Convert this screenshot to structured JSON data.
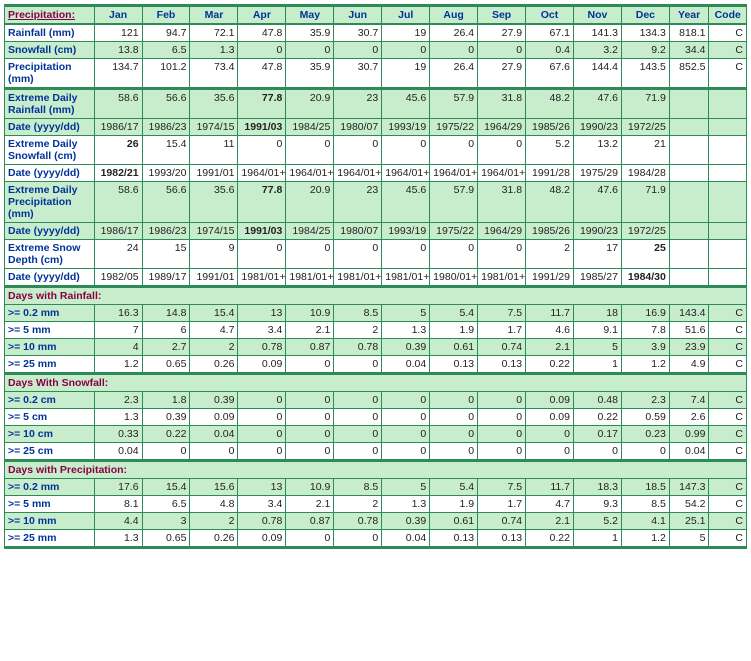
{
  "header": {
    "first": "Precipitation:",
    "months": [
      "Jan",
      "Feb",
      "Mar",
      "Apr",
      "May",
      "Jun",
      "Jul",
      "Aug",
      "Sep",
      "Oct",
      "Nov",
      "Dec"
    ],
    "year": "Year",
    "code": "Code"
  },
  "rows_main": [
    {
      "label": "Rainfall (mm)",
      "cls": "w",
      "vals": [
        "121",
        "94.7",
        "72.1",
        "47.8",
        "35.9",
        "30.7",
        "19",
        "26.4",
        "27.9",
        "67.1",
        "141.3",
        "134.3",
        "818.1",
        "C"
      ],
      "bold": []
    },
    {
      "label": "Snowfall (cm)",
      "cls": "g",
      "vals": [
        "13.8",
        "6.5",
        "1.3",
        "0",
        "0",
        "0",
        "0",
        "0",
        "0",
        "0.4",
        "3.2",
        "9.2",
        "34.4",
        "C"
      ],
      "bold": []
    },
    {
      "label": "Precipitation (mm)",
      "cls": "w",
      "vals": [
        "134.7",
        "101.2",
        "73.4",
        "47.8",
        "35.9",
        "30.7",
        "19",
        "26.4",
        "27.9",
        "67.6",
        "144.4",
        "143.5",
        "852.5",
        "C"
      ],
      "bold": [],
      "bb": true
    },
    {
      "label": "Extreme Daily Rainfall (mm)",
      "cls": "g",
      "vals": [
        "58.6",
        "56.6",
        "35.6",
        "77.8",
        "20.9",
        "23",
        "45.6",
        "57.9",
        "31.8",
        "48.2",
        "47.6",
        "71.9",
        "",
        ""
      ],
      "bold": [
        3
      ]
    },
    {
      "label": "Date (yyyy/dd)",
      "cls": "g",
      "vals": [
        "1986/17",
        "1986/23",
        "1974/15",
        "1991/03",
        "1984/25",
        "1980/07",
        "1993/19",
        "1975/22",
        "1964/29",
        "1985/26",
        "1990/23",
        "1972/25",
        "",
        ""
      ],
      "bold": [
        3
      ]
    },
    {
      "label": "Extreme Daily Snowfall (cm)",
      "cls": "w",
      "vals": [
        "26",
        "15.4",
        "11",
        "0",
        "0",
        "0",
        "0",
        "0",
        "0",
        "5.2",
        "13.2",
        "21",
        "",
        ""
      ],
      "bold": [
        0
      ]
    },
    {
      "label": "Date (yyyy/dd)",
      "cls": "w",
      "vals": [
        "1982/21",
        "1993/20",
        "1991/01",
        "1964/01+",
        "1964/01+",
        "1964/01+",
        "1964/01+",
        "1964/01+",
        "1964/01+",
        "1991/28",
        "1975/29",
        "1984/28",
        "",
        ""
      ],
      "bold": [
        0
      ]
    },
    {
      "label": "Extreme Daily Precipitation (mm)",
      "cls": "g",
      "vals": [
        "58.6",
        "56.6",
        "35.6",
        "77.8",
        "20.9",
        "23",
        "45.6",
        "57.9",
        "31.8",
        "48.2",
        "47.6",
        "71.9",
        "",
        ""
      ],
      "bold": [
        3
      ]
    },
    {
      "label": "Date (yyyy/dd)",
      "cls": "g",
      "vals": [
        "1986/17",
        "1986/23",
        "1974/15",
        "1991/03",
        "1984/25",
        "1980/07",
        "1993/19",
        "1975/22",
        "1964/29",
        "1985/26",
        "1990/23",
        "1972/25",
        "",
        ""
      ],
      "bold": [
        3
      ]
    },
    {
      "label": "Extreme Snow Depth (cm)",
      "cls": "w",
      "vals": [
        "24",
        "15",
        "9",
        "0",
        "0",
        "0",
        "0",
        "0",
        "0",
        "2",
        "17",
        "25",
        "",
        ""
      ],
      "bold": [
        11
      ]
    },
    {
      "label": "Date (yyyy/dd)",
      "cls": "w",
      "vals": [
        "1982/05",
        "1989/17",
        "1991/01",
        "1981/01+",
        "1981/01+",
        "1981/01+",
        "1981/01+",
        "1980/01+",
        "1981/01+",
        "1991/29",
        "1985/27",
        "1984/30",
        "",
        ""
      ],
      "bold": [
        11
      ]
    }
  ],
  "sections": [
    {
      "title": "Days with Rainfall:",
      "rows": [
        {
          "label": ">= 0.2 mm",
          "cls": "g",
          "vals": [
            "16.3",
            "14.8",
            "15.4",
            "13",
            "10.9",
            "8.5",
            "5",
            "5.4",
            "7.5",
            "11.7",
            "18",
            "16.9",
            "143.4",
            "C"
          ]
        },
        {
          "label": ">= 5 mm",
          "cls": "w",
          "vals": [
            "7",
            "6",
            "4.7",
            "3.4",
            "2.1",
            "2",
            "1.3",
            "1.9",
            "1.7",
            "4.6",
            "9.1",
            "7.8",
            "51.6",
            "C"
          ]
        },
        {
          "label": ">= 10 mm",
          "cls": "g",
          "vals": [
            "4",
            "2.7",
            "2",
            "0.78",
            "0.87",
            "0.78",
            "0.39",
            "0.61",
            "0.74",
            "2.1",
            "5",
            "3.9",
            "23.9",
            "C"
          ]
        },
        {
          "label": ">= 25 mm",
          "cls": "w",
          "vals": [
            "1.2",
            "0.65",
            "0.26",
            "0.09",
            "0",
            "0",
            "0.04",
            "0.13",
            "0.13",
            "0.22",
            "1",
            "1.2",
            "4.9",
            "C"
          ]
        }
      ]
    },
    {
      "title": "Days With Snowfall:",
      "rows": [
        {
          "label": ">= 0.2 cm",
          "cls": "g",
          "vals": [
            "2.3",
            "1.8",
            "0.39",
            "0",
            "0",
            "0",
            "0",
            "0",
            "0",
            "0.09",
            "0.48",
            "2.3",
            "7.4",
            "C"
          ]
        },
        {
          "label": ">= 5 cm",
          "cls": "w",
          "vals": [
            "1.3",
            "0.39",
            "0.09",
            "0",
            "0",
            "0",
            "0",
            "0",
            "0",
            "0.09",
            "0.22",
            "0.59",
            "2.6",
            "C"
          ]
        },
        {
          "label": ">= 10 cm",
          "cls": "g",
          "vals": [
            "0.33",
            "0.22",
            "0.04",
            "0",
            "0",
            "0",
            "0",
            "0",
            "0",
            "0",
            "0.17",
            "0.23",
            "0.99",
            "C"
          ]
        },
        {
          "label": ">= 25 cm",
          "cls": "w",
          "vals": [
            "0.04",
            "0",
            "0",
            "0",
            "0",
            "0",
            "0",
            "0",
            "0",
            "0",
            "0",
            "0",
            "0.04",
            "C"
          ]
        }
      ]
    },
    {
      "title": "Days with Precipitation:",
      "rows": [
        {
          "label": ">= 0.2 mm",
          "cls": "g",
          "vals": [
            "17.6",
            "15.4",
            "15.6",
            "13",
            "10.9",
            "8.5",
            "5",
            "5.4",
            "7.5",
            "11.7",
            "18.3",
            "18.5",
            "147.3",
            "C"
          ]
        },
        {
          "label": ">= 5 mm",
          "cls": "w",
          "vals": [
            "8.1",
            "6.5",
            "4.8",
            "3.4",
            "2.1",
            "2",
            "1.3",
            "1.9",
            "1.7",
            "4.7",
            "9.3",
            "8.5",
            "54.2",
            "C"
          ]
        },
        {
          "label": ">= 10 mm",
          "cls": "g",
          "vals": [
            "4.4",
            "3",
            "2",
            "0.78",
            "0.87",
            "0.78",
            "0.39",
            "0.61",
            "0.74",
            "2.1",
            "5.2",
            "4.1",
            "25.1",
            "C"
          ]
        },
        {
          "label": ">= 25 mm",
          "cls": "w",
          "vals": [
            "1.3",
            "0.65",
            "0.26",
            "0.09",
            "0",
            "0",
            "0.04",
            "0.13",
            "0.13",
            "0.22",
            "1",
            "1.2",
            "5",
            "C"
          ]
        }
      ],
      "last": true
    }
  ]
}
